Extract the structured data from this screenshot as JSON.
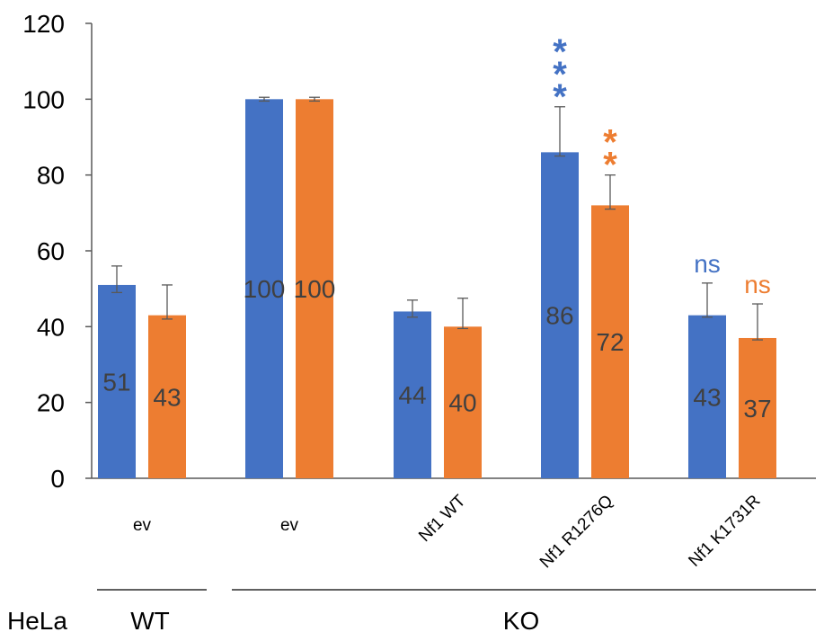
{
  "chart_data": {
    "type": "bar",
    "title": "",
    "xlabel": "",
    "ylabel": "",
    "ylim": [
      0,
      120
    ],
    "yticks": [
      0,
      20,
      40,
      60,
      80,
      100,
      120
    ],
    "grid": false,
    "legend": "none",
    "categories": [
      "ev",
      "ev",
      "Nf1 WT",
      "Nf1 R1276Q",
      "Nf1 K1731R"
    ],
    "series": [
      {
        "color": "#4472C4",
        "values": [
          51,
          100,
          44,
          86,
          43
        ],
        "error_low": [
          2,
          0.5,
          1.5,
          1,
          0.5
        ],
        "error_high": [
          5,
          0.5,
          3,
          12,
          8.5
        ],
        "data_labels": [
          "51",
          "100",
          "44",
          "86",
          "43"
        ]
      },
      {
        "color": "#ED7D31",
        "values": [
          43,
          100,
          40,
          72,
          37
        ],
        "error_low": [
          1,
          0.5,
          0.5,
          1,
          0.5
        ],
        "error_high": [
          8,
          0.5,
          7.5,
          8,
          9
        ],
        "data_labels": [
          "43",
          "100",
          "40",
          "72",
          "37"
        ]
      }
    ],
    "annotations": [
      {
        "category": 3,
        "series": 0,
        "lines": [
          "*",
          "*",
          "*"
        ],
        "color": "#4472C4"
      },
      {
        "category": 3,
        "series": 1,
        "lines": [
          "*",
          "*"
        ],
        "color": "#ED7D31"
      },
      {
        "category": 4,
        "series": 0,
        "lines": [
          "ns"
        ],
        "color": "#4472C4"
      },
      {
        "category": 4,
        "series": 1,
        "lines": [
          "ns"
        ],
        "color": "#ED7D31"
      }
    ],
    "groups": {
      "row_label": "HeLa",
      "items": [
        {
          "label": "WT",
          "from": 0,
          "to": 0
        },
        {
          "label": "KO",
          "from": 1,
          "to": 4
        }
      ]
    }
  }
}
